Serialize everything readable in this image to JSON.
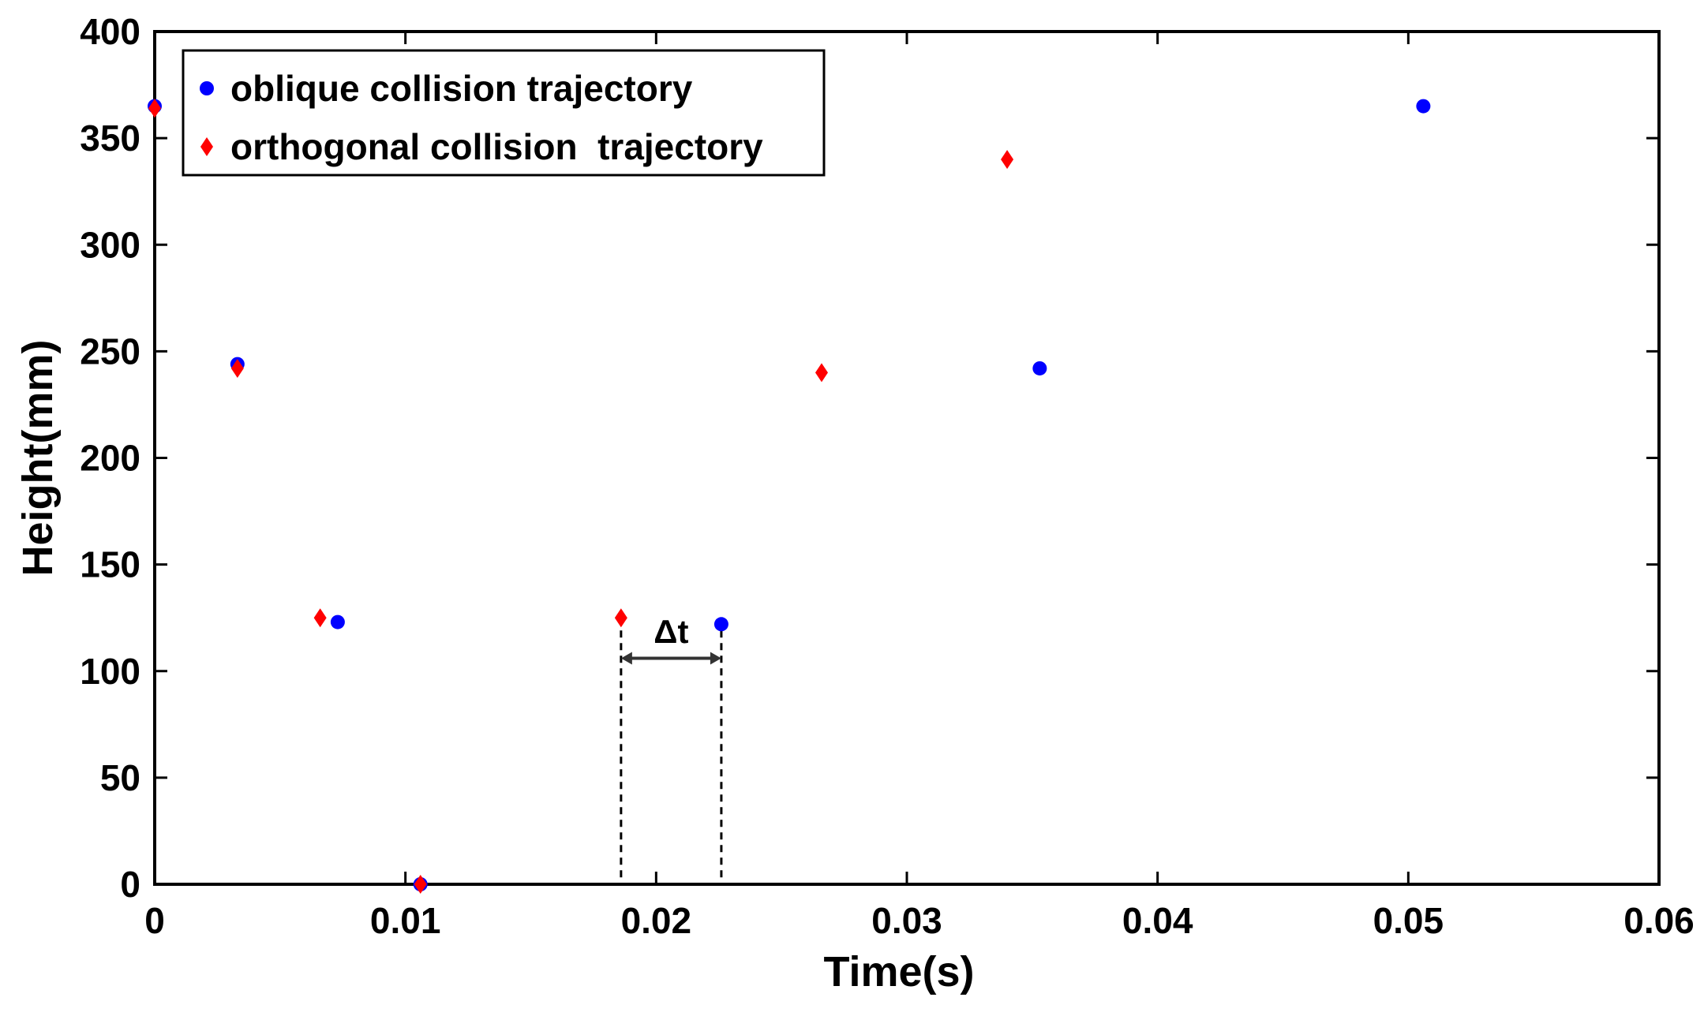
{
  "chart_data": {
    "type": "scatter",
    "title": "",
    "xlabel": "Time(s)",
    "ylabel": "Height(mm)",
    "xlim": [
      0,
      0.06
    ],
    "ylim": [
      0,
      400
    ],
    "x_ticks": [
      0,
      0.01,
      0.02,
      0.03,
      0.04,
      0.05,
      0.06
    ],
    "x_tick_labels": [
      "0",
      "0.01",
      "0.02",
      "0.03",
      "0.04",
      "0.05",
      "0.06"
    ],
    "y_ticks": [
      0,
      50,
      100,
      150,
      200,
      250,
      300,
      350,
      400
    ],
    "y_tick_labels": [
      "0",
      "50",
      "100",
      "150",
      "200",
      "250",
      "300",
      "350",
      "400"
    ],
    "grid": false,
    "legend_position": "top-left",
    "series": [
      {
        "name": "oblique collision trajectory",
        "marker": "circle",
        "color": "#0000ff",
        "x": [
          0,
          0.0033,
          0.0073,
          0.0106,
          0.0226,
          0.0353,
          0.0506
        ],
        "y": [
          365,
          244,
          123,
          0,
          122,
          242,
          365
        ]
      },
      {
        "name": "orthogonal collision  trajectory",
        "marker": "diamond",
        "color": "#ff0000",
        "x": [
          0,
          0.0033,
          0.0066,
          0.0106,
          0.0186,
          0.0266,
          0.034
        ],
        "y": [
          364,
          242,
          125,
          0,
          125,
          240,
          340
        ]
      }
    ],
    "annotations": [
      {
        "type": "interval",
        "label": "Δt",
        "x_start": 0.0186,
        "x_end": 0.0226,
        "y_arrow": 106,
        "y_labels": 117,
        "line_from_y": 0,
        "line_to_y": 125
      }
    ]
  }
}
